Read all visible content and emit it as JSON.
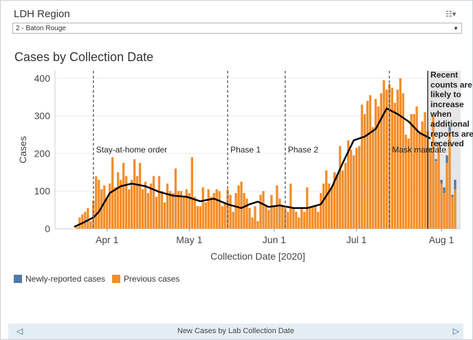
{
  "filter": {
    "title": "LDH Region",
    "selected": "2 - Baton Rouge",
    "icon": "filter-clear-icon"
  },
  "chart_title": "Cases by Collection Date",
  "footer": {
    "label": "New Cases by Lab Collection Date"
  },
  "legend": [
    {
      "label": "Newly-reported cases",
      "color": "#4e79a7"
    },
    {
      "label": "Previous cases",
      "color": "#f28e2b"
    }
  ],
  "colors": {
    "previous": "#f28e2b",
    "new": "#4e79a7",
    "average": "#000000",
    "shade": "#e6e6e6"
  },
  "chart_data": {
    "type": "bar",
    "ylabel": "Cases",
    "xlabel": "Collection Date [2020]",
    "ylim": [
      0,
      420
    ],
    "yticks": [
      0,
      100,
      200,
      300,
      400
    ],
    "x_start": "2020-03-13",
    "x_end": "2020-08-08",
    "xticks": [
      {
        "date": "2020-04-01",
        "label": "Apr 1"
      },
      {
        "date": "2020-05-01",
        "label": "May 1"
      },
      {
        "date": "2020-06-01",
        "label": "Jun 1"
      },
      {
        "date": "2020-07-01",
        "label": "Jul 1"
      },
      {
        "date": "2020-08-01",
        "label": "Aug 1"
      }
    ],
    "start_date": "2020-03-20",
    "previous_cases": [
      0,
      5,
      30,
      38,
      45,
      55,
      20,
      75,
      140,
      130,
      105,
      115,
      80,
      120,
      190,
      110,
      150,
      130,
      175,
      140,
      105,
      130,
      185,
      140,
      175,
      105,
      125,
      95,
      120,
      140,
      85,
      140,
      100,
      70,
      120,
      100,
      95,
      160,
      100,
      100,
      85,
      105,
      95,
      190,
      85,
      60,
      60,
      110,
      70,
      105,
      85,
      95,
      105,
      100,
      60,
      70,
      105,
      90,
      45,
      95,
      115,
      125,
      95,
      80,
      55,
      30,
      60,
      20,
      90,
      100,
      60,
      50,
      90,
      60,
      115,
      80,
      60,
      60,
      45,
      120,
      55,
      45,
      30,
      55,
      45,
      110,
      55,
      60,
      60,
      45,
      95,
      120,
      155,
      120,
      110,
      150,
      145,
      220,
      155,
      175,
      235,
      210,
      195,
      215,
      220,
      330,
      305,
      340,
      355,
      270,
      345,
      325,
      360,
      395,
      370,
      385,
      375,
      335,
      370,
      400,
      360,
      250,
      240,
      305,
      305,
      325,
      260,
      285,
      310,
      260,
      210,
      300,
      180,
      225,
      120,
      95,
      175,
      260,
      85,
      105
    ],
    "new_cases": [
      0,
      0,
      0,
      0,
      0,
      0,
      0,
      0,
      0,
      0,
      0,
      0,
      0,
      0,
      0,
      0,
      0,
      0,
      0,
      0,
      0,
      0,
      0,
      0,
      0,
      0,
      0,
      0,
      0,
      0,
      0,
      0,
      0,
      0,
      0,
      0,
      0,
      0,
      0,
      0,
      0,
      0,
      0,
      0,
      0,
      0,
      0,
      0,
      0,
      0,
      0,
      0,
      0,
      0,
      0,
      0,
      0,
      0,
      0,
      0,
      0,
      0,
      0,
      0,
      0,
      0,
      0,
      0,
      0,
      0,
      0,
      0,
      0,
      0,
      0,
      0,
      0,
      0,
      0,
      0,
      0,
      0,
      0,
      0,
      0,
      0,
      0,
      0,
      0,
      0,
      0,
      0,
      0,
      0,
      0,
      0,
      0,
      0,
      0,
      0,
      0,
      0,
      0,
      0,
      0,
      0,
      0,
      0,
      0,
      0,
      0,
      0,
      0,
      0,
      0,
      0,
      0,
      0,
      0,
      0,
      0,
      0,
      0,
      0,
      0,
      0,
      0,
      0,
      0,
      0,
      5,
      0,
      5,
      5,
      10,
      15,
      20,
      10,
      5,
      25
    ],
    "moving_average": [
      {
        "date": "2020-03-20",
        "value": 5
      },
      {
        "date": "2020-03-23",
        "value": 15
      },
      {
        "date": "2020-03-27",
        "value": 30
      },
      {
        "date": "2020-03-29",
        "value": 45
      },
      {
        "date": "2020-04-02",
        "value": 95
      },
      {
        "date": "2020-04-06",
        "value": 113
      },
      {
        "date": "2020-04-10",
        "value": 120
      },
      {
        "date": "2020-04-15",
        "value": 113
      },
      {
        "date": "2020-04-20",
        "value": 98
      },
      {
        "date": "2020-04-25",
        "value": 88
      },
      {
        "date": "2020-04-30",
        "value": 85
      },
      {
        "date": "2020-05-05",
        "value": 73
      },
      {
        "date": "2020-05-10",
        "value": 80
      },
      {
        "date": "2020-05-15",
        "value": 65
      },
      {
        "date": "2020-05-20",
        "value": 55
      },
      {
        "date": "2020-05-23",
        "value": 65
      },
      {
        "date": "2020-05-26",
        "value": 72
      },
      {
        "date": "2020-05-30",
        "value": 58
      },
      {
        "date": "2020-06-03",
        "value": 62
      },
      {
        "date": "2020-06-08",
        "value": 55
      },
      {
        "date": "2020-06-13",
        "value": 55
      },
      {
        "date": "2020-06-18",
        "value": 65
      },
      {
        "date": "2020-06-22",
        "value": 110
      },
      {
        "date": "2020-06-26",
        "value": 175
      },
      {
        "date": "2020-06-30",
        "value": 235
      },
      {
        "date": "2020-07-04",
        "value": 245
      },
      {
        "date": "2020-07-08",
        "value": 265
      },
      {
        "date": "2020-07-12",
        "value": 320
      },
      {
        "date": "2020-07-16",
        "value": 305
      },
      {
        "date": "2020-07-20",
        "value": 285
      },
      {
        "date": "2020-07-24",
        "value": 255
      },
      {
        "date": "2020-07-28",
        "value": 240
      }
    ],
    "annotations": [
      {
        "date": "2020-03-27",
        "label": "Stay-at-home order"
      },
      {
        "date": "2020-05-15",
        "label": "Phase 1"
      },
      {
        "date": "2020-06-05",
        "label": "Phase 2"
      },
      {
        "date": "2020-07-13",
        "label": "Mask mandate"
      }
    ],
    "recent_note": {
      "start_date": "2020-07-27",
      "lines": [
        "Recent",
        "counts are",
        "likely to",
        "increase",
        "when",
        "additional",
        "reports are",
        "received"
      ]
    }
  }
}
